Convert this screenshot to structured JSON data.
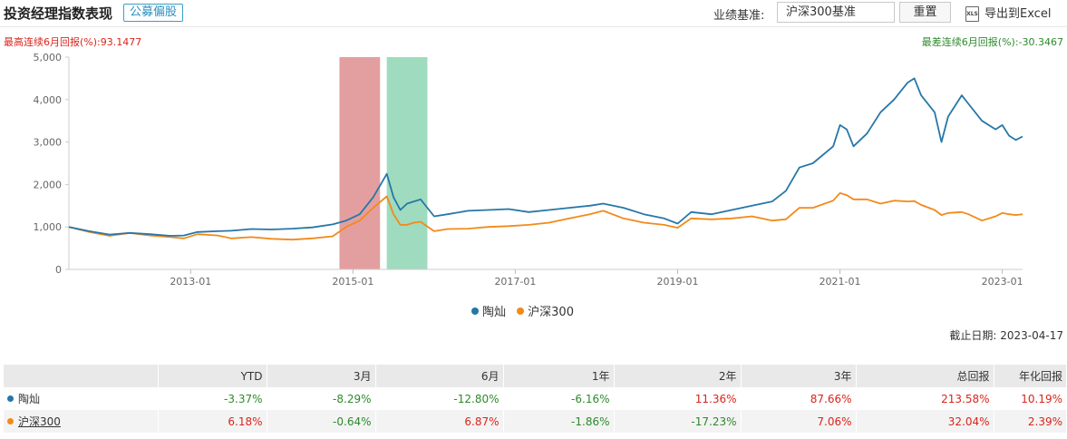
{
  "header": {
    "title": "投资经理指数表现",
    "badge": "公募偏股",
    "benchmark_label": "业绩基准:",
    "benchmark_value": "沪深300基准",
    "reset_label": "重置",
    "export_icon_text": "XLS",
    "export_label": "导出到Excel"
  },
  "stats": {
    "best_label": "最高连续6月回报(%):",
    "best_value": "93.1477",
    "worst_label": "最差连续6月回报(%):",
    "worst_value": "-30.3467"
  },
  "colors": {
    "manager": "#2677a8",
    "benchmark": "#f28a1a",
    "best_band": "#d97f7f",
    "worst_band": "#7fcfa8"
  },
  "chart_data": {
    "type": "line",
    "x_start": "2011-07",
    "x_end": "2023-04",
    "xticks": [
      "2013-01",
      "2015-01",
      "2017-01",
      "2019-01",
      "2021-01",
      "2023-01"
    ],
    "yticks": [
      0,
      1000,
      2000,
      3000,
      4000,
      5000
    ],
    "ytick_labels": [
      "0",
      "1,000",
      "2,000",
      "3,000",
      "4,000",
      "5,000"
    ],
    "ylim": [
      0,
      5000
    ],
    "highlight_bands": [
      {
        "name": "best_6m",
        "start": "2014-11",
        "end": "2015-05"
      },
      {
        "name": "worst_6m",
        "start": "2015-06",
        "end": "2015-12"
      }
    ],
    "series": [
      {
        "name": "陶灿",
        "points": [
          [
            "2011-07",
            1000
          ],
          [
            "2011-10",
            900
          ],
          [
            "2012-01",
            820
          ],
          [
            "2012-04",
            860
          ],
          [
            "2012-07",
            830
          ],
          [
            "2012-10",
            790
          ],
          [
            "2012-12",
            800
          ],
          [
            "2013-02",
            880
          ],
          [
            "2013-05",
            900
          ],
          [
            "2013-07",
            910
          ],
          [
            "2013-10",
            950
          ],
          [
            "2014-01",
            940
          ],
          [
            "2014-04",
            960
          ],
          [
            "2014-07",
            990
          ],
          [
            "2014-10",
            1060
          ],
          [
            "2014-12",
            1150
          ],
          [
            "2015-02",
            1300
          ],
          [
            "2015-04",
            1700
          ],
          [
            "2015-06",
            2250
          ],
          [
            "2015-07",
            1700
          ],
          [
            "2015-08",
            1400
          ],
          [
            "2015-09",
            1550
          ],
          [
            "2015-10",
            1600
          ],
          [
            "2015-11",
            1650
          ],
          [
            "2016-01",
            1250
          ],
          [
            "2016-03",
            1300
          ],
          [
            "2016-06",
            1380
          ],
          [
            "2016-09",
            1400
          ],
          [
            "2016-12",
            1420
          ],
          [
            "2017-03",
            1350
          ],
          [
            "2017-06",
            1400
          ],
          [
            "2017-09",
            1450
          ],
          [
            "2017-12",
            1500
          ],
          [
            "2018-02",
            1550
          ],
          [
            "2018-05",
            1450
          ],
          [
            "2018-08",
            1300
          ],
          [
            "2018-11",
            1200
          ],
          [
            "2019-01",
            1080
          ],
          [
            "2019-03",
            1350
          ],
          [
            "2019-06",
            1300
          ],
          [
            "2019-09",
            1400
          ],
          [
            "2019-12",
            1500
          ],
          [
            "2020-03",
            1600
          ],
          [
            "2020-05",
            1850
          ],
          [
            "2020-07",
            2400
          ],
          [
            "2020-09",
            2500
          ],
          [
            "2020-12",
            2900
          ],
          [
            "2021-01",
            3400
          ],
          [
            "2021-02",
            3300
          ],
          [
            "2021-03",
            2900
          ],
          [
            "2021-05",
            3200
          ],
          [
            "2021-07",
            3700
          ],
          [
            "2021-09",
            4000
          ],
          [
            "2021-11",
            4400
          ],
          [
            "2021-12",
            4500
          ],
          [
            "2022-01",
            4100
          ],
          [
            "2022-03",
            3700
          ],
          [
            "2022-04",
            3000
          ],
          [
            "2022-05",
            3600
          ],
          [
            "2022-07",
            4100
          ],
          [
            "2022-08",
            3900
          ],
          [
            "2022-10",
            3500
          ],
          [
            "2022-12",
            3300
          ],
          [
            "2023-01",
            3400
          ],
          [
            "2023-02",
            3150
          ],
          [
            "2023-03",
            3050
          ],
          [
            "2023-04",
            3130
          ]
        ]
      },
      {
        "name": "沪深300",
        "points": [
          [
            "2011-07",
            1000
          ],
          [
            "2011-10",
            880
          ],
          [
            "2012-01",
            790
          ],
          [
            "2012-04",
            860
          ],
          [
            "2012-07",
            800
          ],
          [
            "2012-10",
            760
          ],
          [
            "2012-12",
            730
          ],
          [
            "2013-02",
            830
          ],
          [
            "2013-05",
            800
          ],
          [
            "2013-07",
            730
          ],
          [
            "2013-10",
            760
          ],
          [
            "2014-01",
            720
          ],
          [
            "2014-04",
            700
          ],
          [
            "2014-07",
            730
          ],
          [
            "2014-10",
            780
          ],
          [
            "2014-12",
            1000
          ],
          [
            "2015-02",
            1150
          ],
          [
            "2015-04",
            1450
          ],
          [
            "2015-06",
            1720
          ],
          [
            "2015-07",
            1300
          ],
          [
            "2015-08",
            1050
          ],
          [
            "2015-09",
            1050
          ],
          [
            "2015-10",
            1100
          ],
          [
            "2015-11",
            1120
          ],
          [
            "2016-01",
            900
          ],
          [
            "2016-03",
            950
          ],
          [
            "2016-06",
            960
          ],
          [
            "2016-09",
            1000
          ],
          [
            "2016-12",
            1020
          ],
          [
            "2017-03",
            1050
          ],
          [
            "2017-06",
            1100
          ],
          [
            "2017-09",
            1200
          ],
          [
            "2017-12",
            1300
          ],
          [
            "2018-02",
            1380
          ],
          [
            "2018-05",
            1200
          ],
          [
            "2018-08",
            1100
          ],
          [
            "2018-11",
            1050
          ],
          [
            "2019-01",
            980
          ],
          [
            "2019-03",
            1200
          ],
          [
            "2019-06",
            1180
          ],
          [
            "2019-09",
            1200
          ],
          [
            "2019-12",
            1250
          ],
          [
            "2020-03",
            1150
          ],
          [
            "2020-05",
            1180
          ],
          [
            "2020-07",
            1450
          ],
          [
            "2020-09",
            1450
          ],
          [
            "2020-12",
            1620
          ],
          [
            "2021-01",
            1800
          ],
          [
            "2021-02",
            1750
          ],
          [
            "2021-03",
            1650
          ],
          [
            "2021-05",
            1650
          ],
          [
            "2021-07",
            1550
          ],
          [
            "2021-09",
            1620
          ],
          [
            "2021-11",
            1600
          ],
          [
            "2021-12",
            1610
          ],
          [
            "2022-01",
            1520
          ],
          [
            "2022-03",
            1400
          ],
          [
            "2022-04",
            1280
          ],
          [
            "2022-05",
            1330
          ],
          [
            "2022-07",
            1350
          ],
          [
            "2022-08",
            1300
          ],
          [
            "2022-10",
            1150
          ],
          [
            "2022-12",
            1250
          ],
          [
            "2023-01",
            1330
          ],
          [
            "2023-02",
            1300
          ],
          [
            "2023-03",
            1280
          ],
          [
            "2023-04",
            1300
          ]
        ]
      }
    ]
  },
  "legend": [
    {
      "name": "陶灿"
    },
    {
      "name": "沪深300"
    }
  ],
  "cutoff": "截止日期:  2023-04-17",
  "table": {
    "headers": [
      "",
      "YTD",
      "3月",
      "6月",
      "1年",
      "2年",
      "3年",
      "总回报",
      "年化回报"
    ],
    "rows": [
      {
        "name": "陶灿",
        "values": [
          "-3.37%",
          "-8.29%",
          "-12.80%",
          "-6.16%",
          "11.36%",
          "87.66%",
          "213.58%",
          "10.19%"
        ]
      },
      {
        "name": "沪深300",
        "values": [
          "6.18%",
          "-0.64%",
          "6.87%",
          "-1.86%",
          "-17.23%",
          "7.06%",
          "32.04%",
          "2.39%"
        ]
      }
    ]
  }
}
